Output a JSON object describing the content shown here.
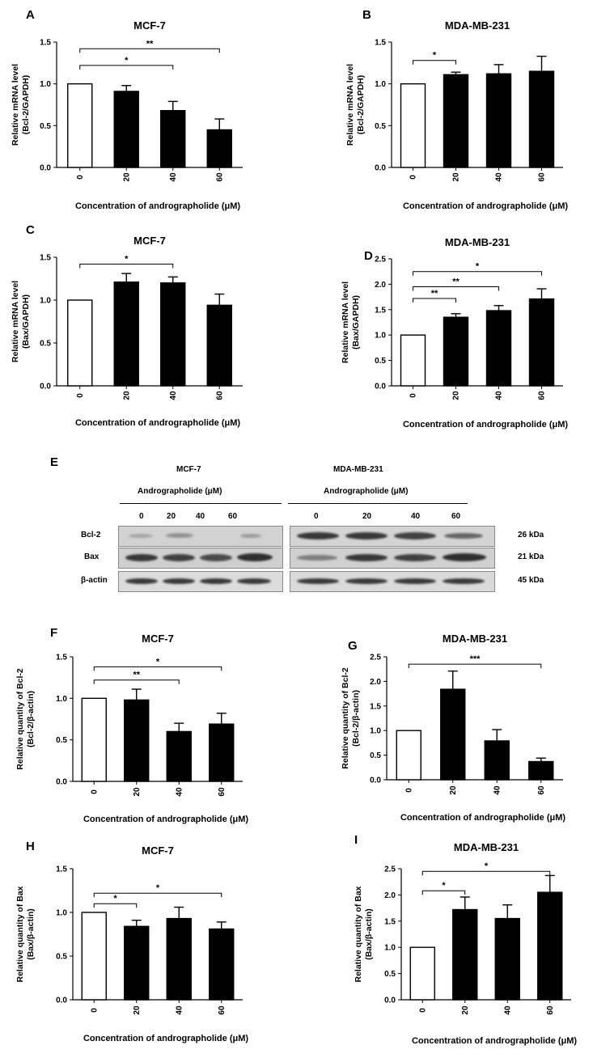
{
  "panels": [
    {
      "letter": "A",
      "chart_data": {
        "type": "bar",
        "title": "MCF-7",
        "ylabel_lines": [
          "Relative mRNA level",
          "(Bcl-2/GAPDH)"
        ],
        "xlabel": "Concentration of andrographolide (μM)",
        "categories": [
          "0",
          "20",
          "40",
          "60"
        ],
        "values": [
          1.0,
          0.91,
          0.68,
          0.45
        ],
        "errors": [
          0.0,
          0.07,
          0.11,
          0.13
        ],
        "ylim": [
          0,
          1.5
        ],
        "yticks": [
          "0.0",
          "0.5",
          "1.0",
          "1.5"
        ],
        "brackets": [
          {
            "from": 0,
            "to": 2,
            "label": "*",
            "y": 1.22
          },
          {
            "from": 0,
            "to": 3,
            "label": "**",
            "y": 1.42
          }
        ]
      }
    },
    {
      "letter": "B",
      "chart_data": {
        "type": "bar",
        "title": "MDA-MB-231",
        "ylabel_lines": [
          "Relative mRNA level",
          "(Bcl-2/GAPDH)"
        ],
        "xlabel": "Concentration of andrographolide (μM)",
        "categories": [
          "0",
          "20",
          "40",
          "60"
        ],
        "values": [
          1.0,
          1.11,
          1.12,
          1.15
        ],
        "errors": [
          0.0,
          0.03,
          0.11,
          0.18
        ],
        "ylim": [
          0,
          1.5
        ],
        "yticks": [
          "0.0",
          "0.5",
          "1.0",
          "1.5"
        ],
        "brackets": [
          {
            "from": 0,
            "to": 1,
            "label": "*",
            "y": 1.28
          }
        ]
      }
    },
    {
      "letter": "C",
      "chart_data": {
        "type": "bar",
        "title": "MCF-7",
        "ylabel_lines": [
          "Relative mRNA level",
          "(Bax/GAPDH)"
        ],
        "xlabel": "Concentration of andrographolide (μM)",
        "categories": [
          "0",
          "20",
          "40",
          "60"
        ],
        "values": [
          1.0,
          1.21,
          1.2,
          0.94
        ],
        "errors": [
          0.0,
          0.1,
          0.07,
          0.13
        ],
        "ylim": [
          0,
          1.5
        ],
        "yticks": [
          "0.0",
          "0.5",
          "1.0",
          "1.5"
        ],
        "brackets": [
          {
            "from": 0,
            "to": 2,
            "label": "*",
            "y": 1.42
          }
        ]
      }
    },
    {
      "letter": "D",
      "chart_data": {
        "type": "bar",
        "title": "MDA-MB-231",
        "ylabel_lines": [
          "Relative mRNA level",
          "(Bax/GAPDH)"
        ],
        "xlabel": "Concentration of andrographolide (μM)",
        "categories": [
          "0",
          "20",
          "40",
          "60"
        ],
        "values": [
          1.0,
          1.35,
          1.48,
          1.71
        ],
        "errors": [
          0.0,
          0.07,
          0.1,
          0.2
        ],
        "ylim": [
          0,
          2.5
        ],
        "yticks": [
          "0.0",
          "0.5",
          "1.0",
          "1.5",
          "2.0",
          "2.5"
        ],
        "brackets": [
          {
            "from": 0,
            "to": 1,
            "label": "**",
            "y": 1.72
          },
          {
            "from": 0,
            "to": 2,
            "label": "**",
            "y": 1.95
          },
          {
            "from": 0,
            "to": 3,
            "label": "*",
            "y": 2.25
          }
        ]
      }
    },
    {
      "letter": "F",
      "chart_data": {
        "type": "bar",
        "title": "MCF-7",
        "ylabel_lines": [
          "Relative quantity of Bcl-2",
          "(Bcl-2/β-actin)"
        ],
        "xlabel": "Concentration of andrographolide (μM)",
        "categories": [
          "0",
          "20",
          "40",
          "60"
        ],
        "values": [
          1.0,
          0.98,
          0.6,
          0.69
        ],
        "errors": [
          0.0,
          0.13,
          0.1,
          0.13
        ],
        "ylim": [
          0,
          1.5
        ],
        "yticks": [
          "0.0",
          "0.5",
          "1.0",
          "1.5"
        ],
        "brackets": [
          {
            "from": 0,
            "to": 2,
            "label": "**",
            "y": 1.22
          },
          {
            "from": 0,
            "to": 3,
            "label": "*",
            "y": 1.38
          }
        ]
      }
    },
    {
      "letter": "G",
      "chart_data": {
        "type": "bar",
        "title": "MDA-MB-231",
        "ylabel_lines": [
          "Relative quantity of Bcl-2",
          "(Bcl-2/β-actin)"
        ],
        "xlabel": "Concentration of andrographolide (μM)",
        "categories": [
          "0",
          "20",
          "40",
          "60"
        ],
        "values": [
          1.0,
          1.84,
          0.79,
          0.37
        ],
        "errors": [
          0.0,
          0.37,
          0.23,
          0.07
        ],
        "ylim": [
          0,
          2.5
        ],
        "yticks": [
          "0.0",
          "0.5",
          "1.0",
          "1.5",
          "2.0",
          "2.5"
        ],
        "brackets": [
          {
            "from": 0,
            "to": 3,
            "label": "***",
            "y": 2.35
          }
        ]
      }
    },
    {
      "letter": "H",
      "chart_data": {
        "type": "bar",
        "title": "MCF-7",
        "ylabel_lines": [
          "Relative quantity of Bax",
          "(Bax/β-actin)"
        ],
        "xlabel": "Concentration of andrographolide (μM)",
        "categories": [
          "0",
          "20",
          "40",
          "60"
        ],
        "values": [
          1.0,
          0.84,
          0.93,
          0.81
        ],
        "errors": [
          0.0,
          0.07,
          0.13,
          0.08
        ],
        "ylim": [
          0,
          1.5
        ],
        "yticks": [
          "0.0",
          "0.5",
          "1.0",
          "1.5"
        ],
        "brackets": [
          {
            "from": 0,
            "to": 1,
            "label": "*",
            "y": 1.1
          },
          {
            "from": 0,
            "to": 3,
            "label": "*",
            "y": 1.22
          }
        ]
      }
    },
    {
      "letter": "I",
      "chart_data": {
        "type": "bar",
        "title": "MDA-MB-231",
        "ylabel_lines": [
          "Relative quantity of Bax",
          "(Bax/β-actin)"
        ],
        "xlabel": "Concentration of andrographolide (μM)",
        "categories": [
          "0",
          "20",
          "40",
          "60"
        ],
        "values": [
          1.0,
          1.72,
          1.55,
          2.05
        ],
        "errors": [
          0.0,
          0.24,
          0.26,
          0.32
        ],
        "ylim": [
          0,
          2.5
        ],
        "yticks": [
          "0.0",
          "0.5",
          "1.0",
          "1.5",
          "2.0",
          "2.5"
        ],
        "brackets": [
          {
            "from": 0,
            "to": 1,
            "label": "*",
            "y": 2.08
          },
          {
            "from": 0,
            "to": 3,
            "label": "*",
            "y": 2.45
          }
        ]
      }
    }
  ],
  "blot": {
    "letter": "E",
    "mcf7_title": "MCF-7",
    "mda_title": "MDA-MB-231",
    "treatment_label": "Andrographolide (μM)",
    "lanes": [
      "0",
      "20",
      "40",
      "60"
    ],
    "rows": [
      {
        "protein": "Bcl-2",
        "size": "26 kDa"
      },
      {
        "protein": "Bax",
        "size": "21 kDa"
      },
      {
        "protein": "β-actin",
        "size": "45 kDa"
      }
    ]
  }
}
